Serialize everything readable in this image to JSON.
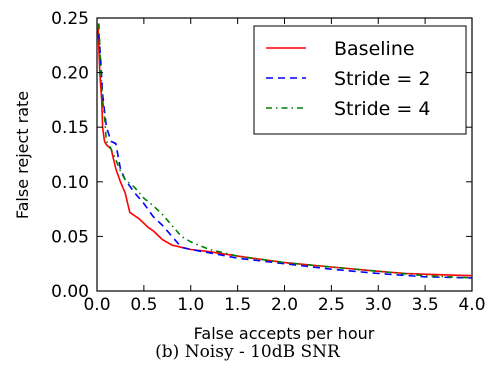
{
  "chart_data": {
    "type": "line",
    "xlabel": "False accepts per hour",
    "ylabel": "False reject rate",
    "xlim": [
      0.0,
      4.0
    ],
    "ylim": [
      0.0,
      0.25
    ],
    "xticks": [
      "0.0",
      "0.5",
      "1.0",
      "1.5",
      "2.0",
      "2.5",
      "3.0",
      "3.5",
      "4.0"
    ],
    "yticks": [
      "0.00",
      "0.05",
      "0.10",
      "0.15",
      "0.20",
      "0.25"
    ],
    "grid": false,
    "legend_position": "top-right",
    "series": [
      {
        "name": "Baseline",
        "color": "#ff0000",
        "style": "solid",
        "x": [
          0.01,
          0.03,
          0.05,
          0.06,
          0.08,
          0.1,
          0.15,
          0.2,
          0.25,
          0.3,
          0.35,
          0.45,
          0.55,
          0.6,
          0.7,
          0.8,
          0.9,
          1.0,
          1.2,
          1.5,
          2.0,
          2.5,
          3.0,
          3.3,
          3.6,
          4.0
        ],
        "y": [
          0.245,
          0.2,
          0.175,
          0.15,
          0.137,
          0.134,
          0.13,
          0.112,
          0.1,
          0.09,
          0.072,
          0.066,
          0.058,
          0.055,
          0.047,
          0.042,
          0.04,
          0.038,
          0.036,
          0.032,
          0.026,
          0.022,
          0.018,
          0.016,
          0.015,
          0.014
        ]
      },
      {
        "name": "Stride = 2",
        "color": "#0000ff",
        "style": "dashed",
        "x": [
          0.02,
          0.04,
          0.06,
          0.08,
          0.1,
          0.12,
          0.15,
          0.2,
          0.25,
          0.3,
          0.4,
          0.5,
          0.6,
          0.7,
          0.8,
          0.9,
          1.0,
          1.2,
          1.5,
          2.0,
          2.5,
          3.0,
          3.5,
          4.0
        ],
        "y": [
          0.235,
          0.21,
          0.18,
          0.165,
          0.15,
          0.145,
          0.137,
          0.135,
          0.112,
          0.102,
          0.09,
          0.08,
          0.068,
          0.06,
          0.05,
          0.04,
          0.038,
          0.035,
          0.03,
          0.025,
          0.02,
          0.016,
          0.013,
          0.012
        ]
      },
      {
        "name": "Stride = 4",
        "color": "#008000",
        "style": "dashdot",
        "x": [
          0.02,
          0.04,
          0.06,
          0.08,
          0.1,
          0.12,
          0.15,
          0.2,
          0.25,
          0.3,
          0.4,
          0.5,
          0.6,
          0.7,
          0.8,
          0.9,
          1.0,
          1.2,
          1.5,
          2.0,
          2.5,
          3.0,
          3.5,
          4.0
        ],
        "y": [
          0.245,
          0.2,
          0.175,
          0.16,
          0.137,
          0.135,
          0.13,
          0.12,
          0.11,
          0.102,
          0.095,
          0.085,
          0.078,
          0.07,
          0.06,
          0.05,
          0.045,
          0.038,
          0.032,
          0.026,
          0.022,
          0.018,
          0.014,
          0.012
        ]
      }
    ]
  },
  "caption": "(b) Noisy - 10dB SNR"
}
